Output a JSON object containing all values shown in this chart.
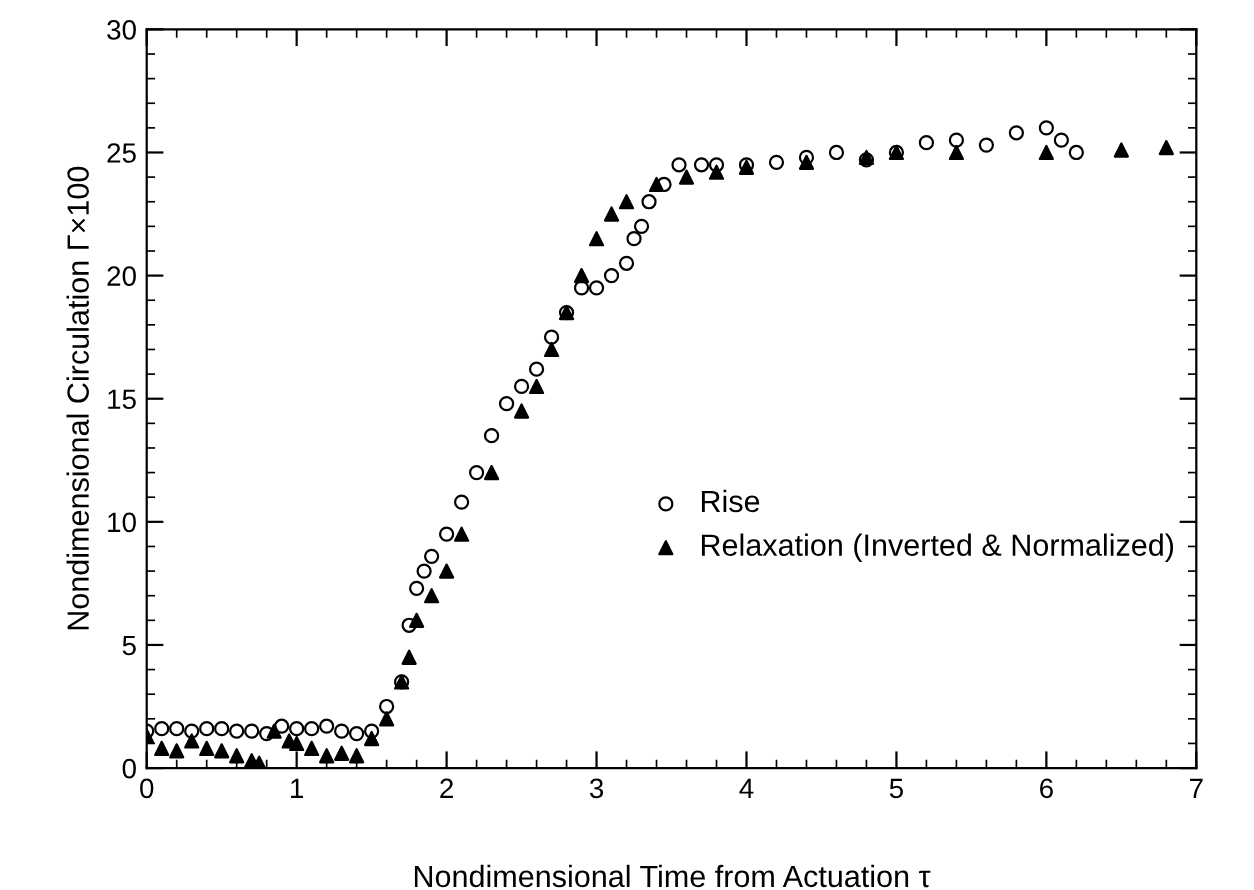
{
  "chart_data": {
    "type": "scatter",
    "xlabel": "Nondimensional Time from Actuation τ",
    "ylabel": "Nondimensional Circulation Γ×100",
    "xlim": [
      0,
      7
    ],
    "ylim": [
      0,
      30
    ],
    "xticks": [
      0,
      1,
      2,
      3,
      4,
      5,
      6,
      7
    ],
    "yticks": [
      0,
      5,
      10,
      15,
      20,
      25,
      30
    ],
    "legend": "lower right",
    "grid": false,
    "series": [
      {
        "name": "Rise",
        "color": "#000000",
        "marker": "circle",
        "x": [
          0.0,
          0.1,
          0.2,
          0.3,
          0.4,
          0.5,
          0.6,
          0.7,
          0.8,
          0.9,
          1.0,
          1.1,
          1.2,
          1.3,
          1.4,
          1.5,
          1.6,
          1.7,
          1.75,
          1.8,
          1.85,
          1.9,
          2.0,
          2.1,
          2.2,
          2.3,
          2.4,
          2.5,
          2.6,
          2.7,
          2.8,
          2.9,
          3.0,
          3.1,
          3.2,
          3.25,
          3.3,
          3.35,
          3.45,
          3.55,
          3.7,
          3.8,
          4.0,
          4.2,
          4.4,
          4.6,
          4.8,
          5.0,
          5.2,
          5.4,
          5.6,
          5.8,
          6.0,
          6.1,
          6.2
        ],
        "values": [
          1.5,
          1.6,
          1.6,
          1.5,
          1.6,
          1.6,
          1.5,
          1.5,
          1.4,
          1.7,
          1.6,
          1.6,
          1.7,
          1.5,
          1.4,
          1.5,
          2.5,
          3.5,
          5.8,
          7.3,
          8.0,
          8.6,
          9.5,
          10.8,
          12.0,
          13.5,
          14.8,
          15.5,
          16.2,
          17.5,
          18.5,
          19.5,
          19.5,
          20.0,
          20.5,
          21.5,
          22.0,
          23.0,
          23.7,
          24.5,
          24.5,
          24.5,
          24.5,
          24.6,
          24.8,
          25.0,
          24.7,
          25.0,
          25.4,
          25.5,
          25.3,
          25.8,
          26.0,
          25.5,
          25.0
        ]
      },
      {
        "name": "Relaxation (Inverted & Normalized)",
        "color": "#000000",
        "marker": "triangle",
        "x": [
          0.0,
          0.1,
          0.2,
          0.3,
          0.4,
          0.5,
          0.6,
          0.7,
          0.75,
          0.85,
          0.95,
          1.0,
          1.1,
          1.2,
          1.3,
          1.4,
          1.5,
          1.6,
          1.7,
          1.75,
          1.8,
          1.9,
          2.0,
          2.1,
          2.3,
          2.5,
          2.6,
          2.7,
          2.8,
          2.9,
          3.0,
          3.1,
          3.2,
          3.4,
          3.6,
          3.8,
          4.0,
          4.4,
          4.8,
          5.0,
          5.4,
          6.0,
          6.5,
          6.8
        ],
        "values": [
          1.3,
          0.8,
          0.7,
          1.1,
          0.8,
          0.7,
          0.5,
          0.3,
          0.2,
          1.5,
          1.1,
          1.0,
          0.8,
          0.5,
          0.6,
          0.5,
          1.2,
          2.0,
          3.5,
          4.5,
          6.0,
          7.0,
          8.0,
          9.5,
          12.0,
          14.5,
          15.5,
          17.0,
          18.5,
          20.0,
          21.5,
          22.5,
          23.0,
          23.7,
          24.0,
          24.2,
          24.4,
          24.6,
          24.8,
          25.0,
          25.0,
          25.0,
          25.1,
          25.2
        ]
      }
    ]
  }
}
